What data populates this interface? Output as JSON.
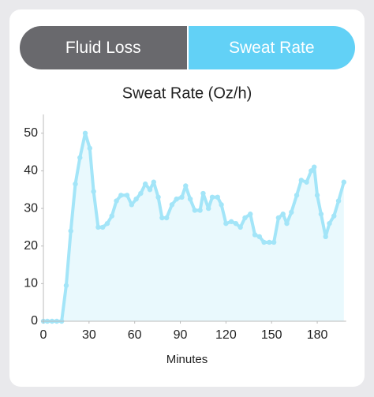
{
  "tabs": [
    "Fluid Loss",
    "Sweat Rate"
  ],
  "chart_data": {
    "type": "area",
    "title": "Sweat Rate (Oz/h)",
    "x_label": "Minutes",
    "x": [
      0,
      2.6,
      5.7,
      8.8,
      12,
      15,
      18,
      21,
      24,
      27.5,
      30.5,
      33,
      36,
      39,
      42,
      45,
      48,
      51,
      55,
      58,
      61,
      64,
      67,
      70,
      72.5,
      75.5,
      78,
      81,
      84.5,
      87.5,
      91,
      93.5,
      96.5,
      99.5,
      103,
      105,
      108.5,
      111,
      114.5,
      117,
      120,
      123.5,
      126.5,
      129.5,
      132.5,
      136,
      139,
      142,
      145,
      148.5,
      151.5,
      154.5,
      157.5,
      160,
      163,
      166.5,
      169.5,
      173,
      176,
      178,
      180,
      182.5,
      185.5,
      188,
      191,
      194,
      197.5
    ],
    "series": [
      {
        "name": "Sweat Rate",
        "color": "#a3e5f8",
        "values": [
          0,
          0,
          0,
          0,
          0,
          9.5,
          24,
          36.5,
          43.5,
          50,
          46,
          34.5,
          25,
          25,
          26,
          28,
          32,
          33.5,
          33.5,
          31,
          32.5,
          34,
          36.5,
          35,
          37,
          33,
          27.5,
          27.5,
          31,
          32.5,
          33,
          36,
          32.5,
          29.5,
          29.5,
          34,
          30,
          33,
          33,
          31,
          26,
          26.5,
          26,
          25,
          27.5,
          28.5,
          23,
          22.5,
          21,
          21,
          21,
          27.5,
          28.5,
          26,
          29,
          33.5,
          37.5,
          37,
          40,
          41,
          33.5,
          28.5,
          22.5,
          26,
          28,
          32,
          37
        ]
      }
    ],
    "area_color": "#e9f9fd",
    "xlim": [
      0,
      199
    ],
    "xticks": [
      0,
      30,
      60,
      90,
      120,
      150,
      180
    ],
    "ylim": [
      0,
      55
    ],
    "yticks": [
      0,
      10,
      20,
      30,
      40,
      50
    ]
  }
}
